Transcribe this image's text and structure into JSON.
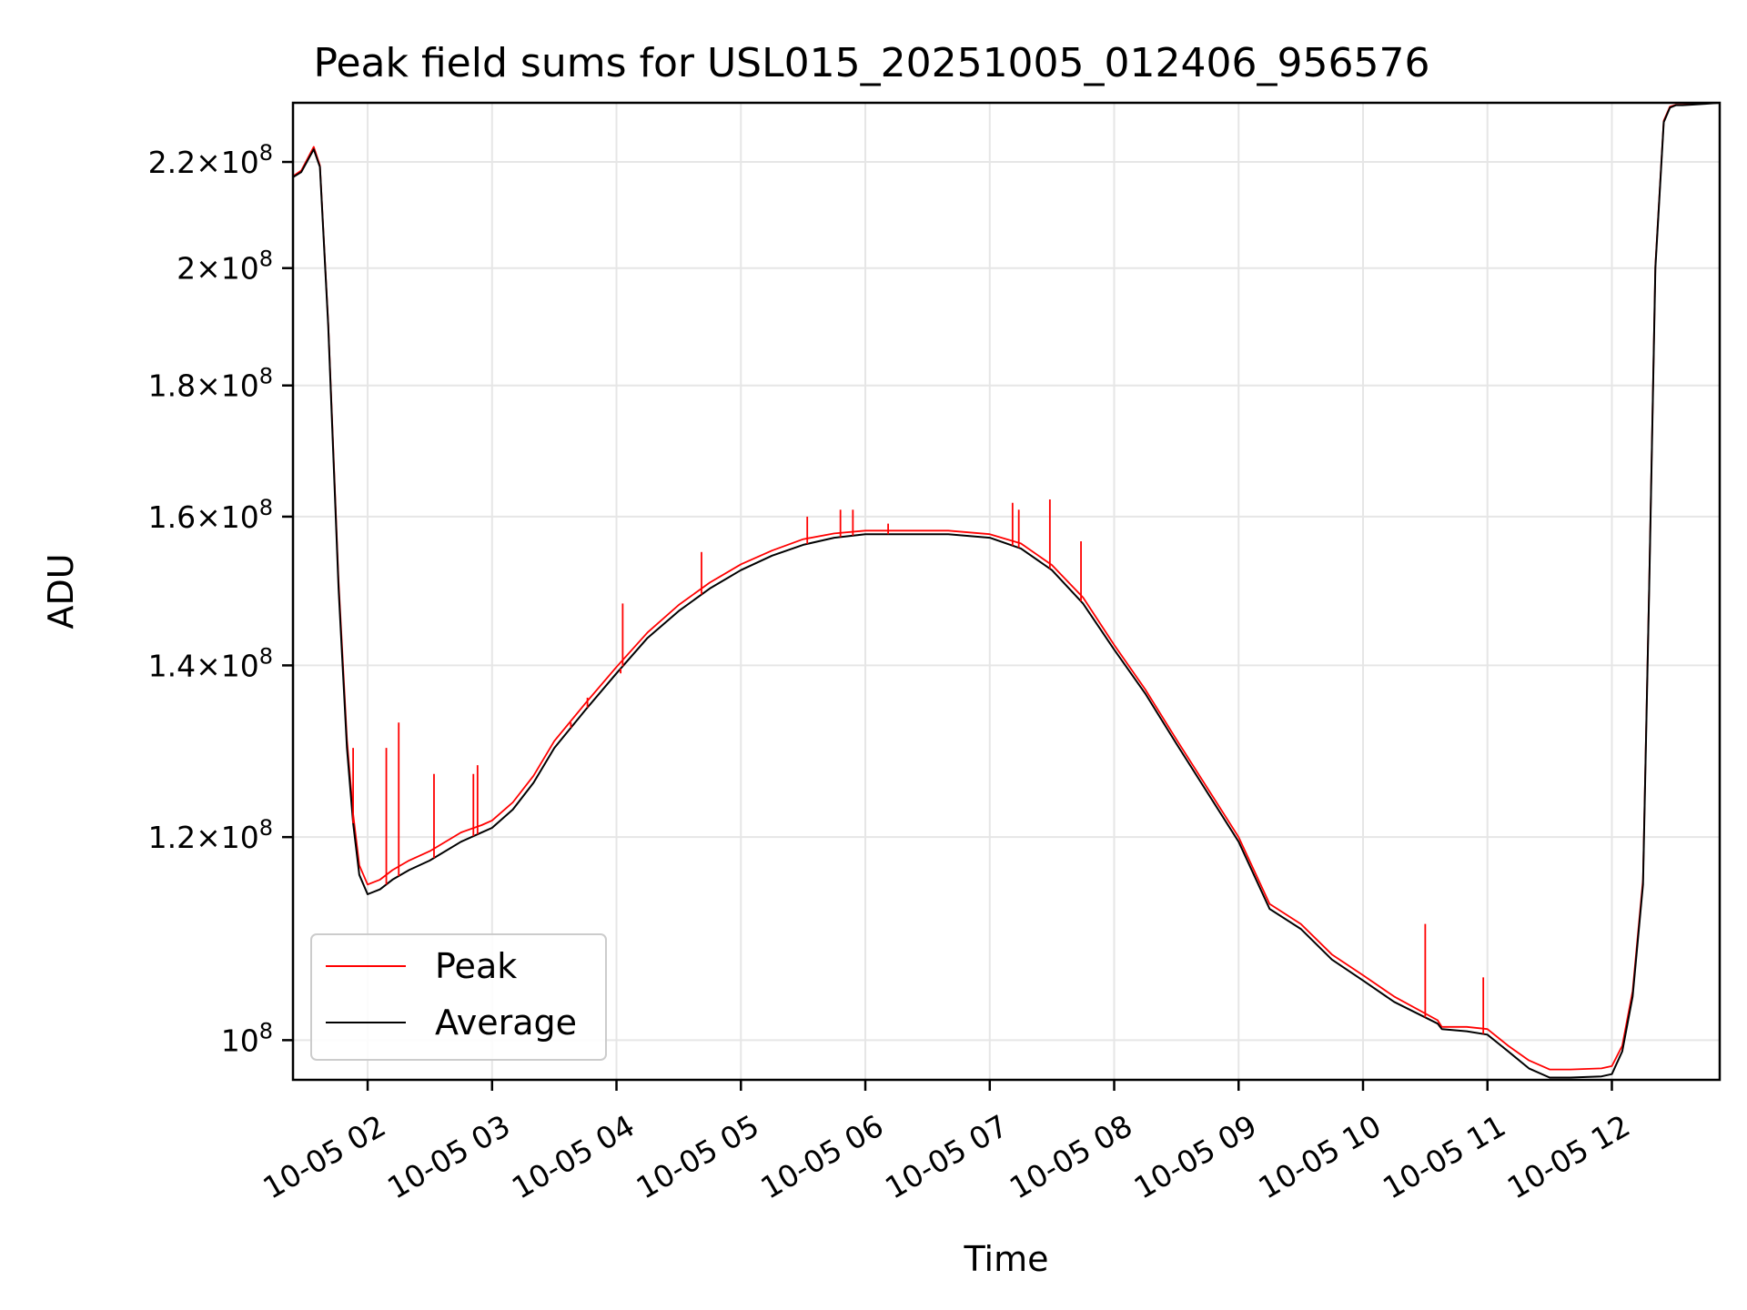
{
  "chart_data": {
    "type": "line",
    "title": "Peak field sums for USL015_20251005_012406_956576",
    "xlabel": "Time",
    "ylabel": "ADU",
    "y_scale": "log",
    "grid": true,
    "legend_position": "lower-left",
    "xlim": [
      "2025-10-05 01:24",
      "2025-10-05 12:52"
    ],
    "ylim": [
      96500000,
      232000000
    ],
    "x_ticks": [
      {
        "time": "2025-10-05 02:00",
        "label": "10-05 02"
      },
      {
        "time": "2025-10-05 03:00",
        "label": "10-05 03"
      },
      {
        "time": "2025-10-05 04:00",
        "label": "10-05 04"
      },
      {
        "time": "2025-10-05 05:00",
        "label": "10-05 05"
      },
      {
        "time": "2025-10-05 06:00",
        "label": "10-05 06"
      },
      {
        "time": "2025-10-05 07:00",
        "label": "10-05 07"
      },
      {
        "time": "2025-10-05 08:00",
        "label": "10-05 08"
      },
      {
        "time": "2025-10-05 09:00",
        "label": "10-05 09"
      },
      {
        "time": "2025-10-05 10:00",
        "label": "10-05 10"
      },
      {
        "time": "2025-10-05 11:00",
        "label": "10-05 11"
      },
      {
        "time": "2025-10-05 12:00",
        "label": "10-05 12"
      }
    ],
    "y_ticks": [
      {
        "value": 100000000,
        "mant": "",
        "exp": "8"
      },
      {
        "value": 120000000,
        "mant": "1.2",
        "exp": "8"
      },
      {
        "value": 140000000,
        "mant": "1.4",
        "exp": "8"
      },
      {
        "value": 160000000,
        "mant": "1.6",
        "exp": "8"
      },
      {
        "value": 180000000,
        "mant": "1.8",
        "exp": "8"
      },
      {
        "value": 200000000,
        "mant": "2",
        "exp": "8"
      },
      {
        "value": 220000000,
        "mant": "2.2",
        "exp": "8"
      }
    ],
    "series": [
      {
        "name": "Average",
        "color": "#000000",
        "x": [
          "2025-10-05 01:24",
          "2025-10-05 01:28",
          "2025-10-05 01:34",
          "2025-10-05 01:37",
          "2025-10-05 01:41",
          "2025-10-05 01:46",
          "2025-10-05 01:50",
          "2025-10-05 01:53",
          "2025-10-05 01:56",
          "2025-10-05 02:00",
          "2025-10-05 02:06",
          "2025-10-05 02:12",
          "2025-10-05 02:20",
          "2025-10-05 02:30",
          "2025-10-05 02:45",
          "2025-10-05 02:55",
          "2025-10-05 03:00",
          "2025-10-05 03:10",
          "2025-10-05 03:20",
          "2025-10-05 03:30",
          "2025-10-05 03:45",
          "2025-10-05 04:00",
          "2025-10-05 04:15",
          "2025-10-05 04:30",
          "2025-10-05 04:45",
          "2025-10-05 05:00",
          "2025-10-05 05:15",
          "2025-10-05 05:30",
          "2025-10-05 05:45",
          "2025-10-05 06:00",
          "2025-10-05 06:20",
          "2025-10-05 06:40",
          "2025-10-05 07:00",
          "2025-10-05 07:15",
          "2025-10-05 07:30",
          "2025-10-05 07:45",
          "2025-10-05 08:00",
          "2025-10-05 08:15",
          "2025-10-05 08:30",
          "2025-10-05 09:00",
          "2025-10-05 09:15",
          "2025-10-05 09:30",
          "2025-10-05 09:45",
          "2025-10-05 10:00",
          "2025-10-05 10:15",
          "2025-10-05 10:36",
          "2025-10-05 10:38",
          "2025-10-05 10:50",
          "2025-10-05 11:00",
          "2025-10-05 11:10",
          "2025-10-05 11:20",
          "2025-10-05 11:30",
          "2025-10-05 11:40",
          "2025-10-05 11:55",
          "2025-10-05 12:00",
          "2025-10-05 12:05",
          "2025-10-05 12:10",
          "2025-10-05 12:15",
          "2025-10-05 12:18",
          "2025-10-05 12:21",
          "2025-10-05 12:25",
          "2025-10-05 12:28",
          "2025-10-05 12:31",
          "2025-10-05 12:34",
          "2025-10-05 12:38",
          "2025-10-05 12:45",
          "2025-10-05 12:52"
        ],
        "y": [
          217000000,
          218000000,
          222500000,
          219000000,
          190000000,
          150000000,
          130000000,
          121500000,
          116000000,
          114000000,
          114500000,
          115500000,
          116500000,
          117500000,
          119500000,
          120500000,
          121000000,
          123000000,
          126000000,
          130000000,
          134500000,
          139000000,
          143500000,
          147000000,
          150000000,
          152500000,
          154500000,
          156000000,
          157000000,
          157500000,
          157500000,
          157500000,
          157000000,
          155500000,
          152500000,
          148000000,
          142000000,
          136500000,
          130500000,
          119500000,
          112500000,
          110500000,
          107500000,
          105500000,
          103500000,
          101500000,
          101000000,
          100800000,
          100500000,
          99000000,
          97500000,
          96700000,
          96700000,
          96800000,
          97000000,
          99000000,
          104000000,
          115000000,
          150000000,
          200000000,
          228000000,
          231000000,
          231500000,
          231500000,
          231600000,
          231800000,
          232000000
        ]
      },
      {
        "name": "Peak",
        "color": "#ff0000",
        "x": [
          "2025-10-05 01:24",
          "2025-10-05 01:28",
          "2025-10-05 01:34",
          "2025-10-05 01:37",
          "2025-10-05 01:41",
          "2025-10-05 01:46",
          "2025-10-05 01:50",
          "2025-10-05 01:53",
          "2025-10-05 01:56",
          "2025-10-05 02:00",
          "2025-10-05 02:06",
          "2025-10-05 02:12",
          "2025-10-05 02:20",
          "2025-10-05 02:30",
          "2025-10-05 02:45",
          "2025-10-05 02:55",
          "2025-10-05 03:00",
          "2025-10-05 03:10",
          "2025-10-05 03:20",
          "2025-10-05 03:30",
          "2025-10-05 03:45",
          "2025-10-05 04:00",
          "2025-10-05 04:15",
          "2025-10-05 04:30",
          "2025-10-05 04:45",
          "2025-10-05 05:00",
          "2025-10-05 05:15",
          "2025-10-05 05:30",
          "2025-10-05 05:45",
          "2025-10-05 06:00",
          "2025-10-05 06:20",
          "2025-10-05 06:40",
          "2025-10-05 07:00",
          "2025-10-05 07:15",
          "2025-10-05 07:30",
          "2025-10-05 07:45",
          "2025-10-05 08:00",
          "2025-10-05 08:15",
          "2025-10-05 08:30",
          "2025-10-05 09:00",
          "2025-10-05 09:15",
          "2025-10-05 09:30",
          "2025-10-05 09:45",
          "2025-10-05 10:00",
          "2025-10-05 10:15",
          "2025-10-05 10:36",
          "2025-10-05 10:38",
          "2025-10-05 10:50",
          "2025-10-05 11:00",
          "2025-10-05 11:10",
          "2025-10-05 11:20",
          "2025-10-05 11:30",
          "2025-10-05 11:40",
          "2025-10-05 11:55",
          "2025-10-05 12:00",
          "2025-10-05 12:05",
          "2025-10-05 12:10",
          "2025-10-05 12:15",
          "2025-10-05 12:18",
          "2025-10-05 12:21",
          "2025-10-05 12:25",
          "2025-10-05 12:28",
          "2025-10-05 12:31",
          "2025-10-05 12:34",
          "2025-10-05 12:38",
          "2025-10-05 12:45",
          "2025-10-05 12:52"
        ],
        "y": [
          217200000,
          218300000,
          223000000,
          219300000,
          190500000,
          151000000,
          131000000,
          122500000,
          117000000,
          115000000,
          115500000,
          116500000,
          117500000,
          118500000,
          120500000,
          121300000,
          121800000,
          123800000,
          126800000,
          130800000,
          135300000,
          139800000,
          144200000,
          147800000,
          150800000,
          153300000,
          155200000,
          156800000,
          157600000,
          158000000,
          158000000,
          158000000,
          157500000,
          156200000,
          153200000,
          148800000,
          142600000,
          137000000,
          131000000,
          120000000,
          113000000,
          111000000,
          108000000,
          106000000,
          104000000,
          101800000,
          101200000,
          101200000,
          101000000,
          99500000,
          98200000,
          97400000,
          97400000,
          97500000,
          97700000,
          99500000,
          104500000,
          115500000,
          150500000,
          200500000,
          228300000,
          231200000,
          231600000,
          231600000,
          231700000,
          231900000,
          232000000
        ]
      }
    ],
    "spikes": {
      "series": "Peak",
      "x": [
        "2025-10-05 01:53",
        "2025-10-05 02:09",
        "2025-10-05 02:15",
        "2025-10-05 02:32",
        "2025-10-05 02:51",
        "2025-10-05 02:53",
        "2025-10-05 03:38",
        "2025-10-05 03:46",
        "2025-10-05 04:02",
        "2025-10-05 04:03",
        "2025-10-05 04:41",
        "2025-10-05 05:32",
        "2025-10-05 05:48",
        "2025-10-05 05:54",
        "2025-10-05 06:11",
        "2025-10-05 07:11",
        "2025-10-05 07:14",
        "2025-10-05 07:29",
        "2025-10-05 07:44",
        "2025-10-05 10:30",
        "2025-10-05 10:58"
      ],
      "y": [
        130000000,
        130000000,
        133000000,
        127000000,
        127000000,
        128000000,
        133000000,
        136000000,
        139000000,
        148000000,
        155000000,
        160000000,
        161000000,
        161000000,
        159000000,
        162000000,
        161000000,
        162500000,
        156500000,
        111000000,
        105800000
      ]
    },
    "legend": [
      {
        "name": "Peak",
        "color": "#ff0000"
      },
      {
        "name": "Average",
        "color": "#000000"
      }
    ]
  }
}
